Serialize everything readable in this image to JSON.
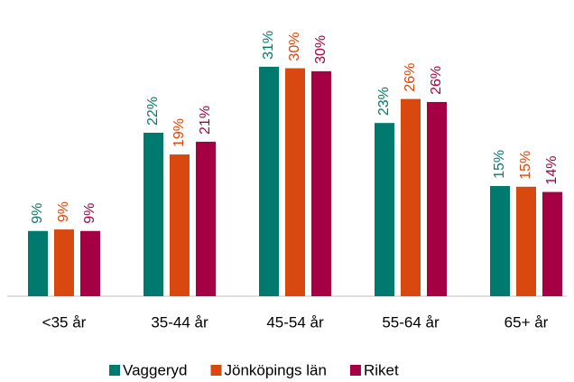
{
  "chart_data": {
    "type": "bar",
    "categories": [
      "<35 år",
      "35-44 år",
      "45-54 år",
      "55-64 år",
      "65+ år"
    ],
    "series": [
      {
        "name": "Vaggeryd",
        "color": "#007a6e",
        "values": [
          8.7,
          21.8,
          30.6,
          23.1,
          14.7
        ],
        "value_labels": [
          "9%",
          "22%",
          "31%",
          "23%",
          "15%"
        ]
      },
      {
        "name": "Jönköpings län",
        "color": "#d9480f",
        "values": [
          8.9,
          18.9,
          30.4,
          26.3,
          14.6
        ],
        "value_labels": [
          "9%",
          "19%",
          "30%",
          "26%",
          "15%"
        ]
      },
      {
        "name": "Riket",
        "color": "#a50044",
        "values": [
          8.7,
          20.6,
          30.0,
          25.9,
          13.9
        ],
        "value_labels": [
          "9%",
          "21%",
          "30%",
          "26%",
          "14%"
        ]
      }
    ],
    "ylim": [
      0,
      39.5
    ],
    "legend": "bottom"
  }
}
